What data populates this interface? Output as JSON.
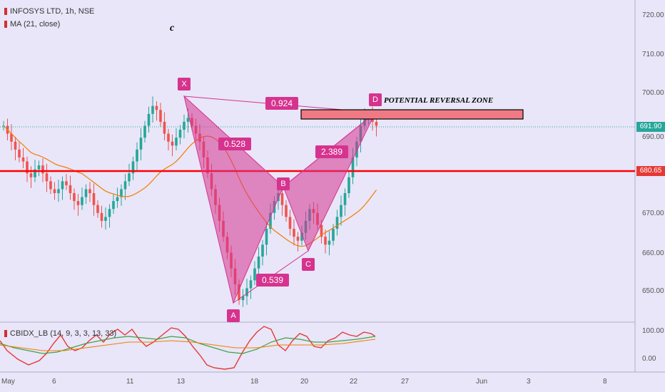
{
  "legend": {
    "symbol": "INFOSYS LTD, 1h, NSE",
    "ma": "MA (21, close)",
    "indicator": "CBIDX_LB (14, 9, 3, 3, 13, 33)"
  },
  "annotation_c": "c",
  "prz_label": "POTENTIAL REVERSAL ZONE",
  "points": {
    "x": "X",
    "a": "A",
    "b": "B",
    "c": "C",
    "d": "D"
  },
  "ratios": {
    "xab": "0.528",
    "abc": "0.539",
    "bcd": "2.389",
    "xad": "0.924"
  },
  "price_axis": {
    "ticks": [
      "720.00",
      "710.00",
      "700.00",
      "690.00",
      "670.00",
      "660.00",
      "650.00"
    ],
    "current_price": "691.90",
    "line_price": "680.65"
  },
  "indicator_axis": {
    "ticks": [
      "100.00",
      "0.00"
    ]
  },
  "time_axis": {
    "ticks": [
      "May",
      "6",
      "11",
      "13",
      "18",
      "20",
      "22",
      "27",
      "Jun",
      "3",
      "8"
    ]
  },
  "colors": {
    "background": "#e8e6f8",
    "up_candle": "#26a69a",
    "down_candle": "#ef5350",
    "ma_line": "#f57c00",
    "pattern": "#d6338f",
    "horizontal_line": "#ff0000",
    "prz_fill": "#ef7a85"
  },
  "chart_data": {
    "type": "candlestick",
    "symbol": "INFOSYS LTD",
    "interval": "1h",
    "exchange": "NSE",
    "y_ticks": [
      720,
      710,
      700,
      690,
      670,
      660,
      650
    ],
    "ylim": [
      644,
      724
    ],
    "current_price": 691.9,
    "horizontal_line": 680.65,
    "harmonic_pattern": {
      "X": 700,
      "A": 647,
      "B": 675,
      "C": 660,
      "D": 696,
      "ratios": {
        "XAB": 0.528,
        "ABC": 0.539,
        "BCD": 2.389,
        "XAD": 0.924
      }
    },
    "potential_reversal_zone": [
      694,
      696.5
    ],
    "close_series_approx": [
      692,
      690,
      688,
      686,
      684,
      683,
      680,
      679,
      681,
      682,
      680,
      678,
      676,
      675,
      676,
      678,
      677,
      675,
      673,
      672,
      674,
      676,
      675,
      672,
      670,
      668,
      669,
      671,
      673,
      674,
      676,
      678,
      680,
      683,
      686,
      689,
      692,
      695,
      697,
      696,
      693,
      690,
      688,
      687,
      689,
      691,
      693,
      694,
      692,
      690,
      688,
      684,
      680,
      676,
      672,
      668,
      664,
      660,
      656,
      652,
      648,
      649,
      651,
      653,
      656,
      659,
      662,
      666,
      670,
      673,
      675,
      672,
      669,
      666,
      664,
      663,
      665,
      668,
      671,
      670,
      667,
      664,
      662,
      663,
      666,
      669,
      672,
      675,
      679,
      684,
      688,
      692,
      694,
      695,
      693,
      692
    ]
  }
}
